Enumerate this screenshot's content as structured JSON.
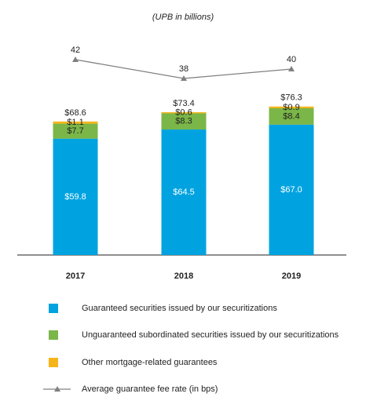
{
  "chart_data": {
    "type": "bar",
    "stacked": true,
    "subtitle": "(UPB in billions)",
    "categories": [
      "2017",
      "2018",
      "2019"
    ],
    "series": [
      {
        "name": "Guaranteed securities issued by our securitizations",
        "color": "#00a3e0",
        "values": [
          59.8,
          64.5,
          67.0
        ],
        "value_labels": [
          "$59.8",
          "$64.5",
          "$67.0"
        ]
      },
      {
        "name": "Unguaranteed subordinated securities issued by our securitizations",
        "color": "#7ab648",
        "values": [
          7.7,
          8.3,
          8.4
        ],
        "value_labels": [
          "$7.7",
          "$8.3",
          "$8.4"
        ]
      },
      {
        "name": "Other mortgage-related guarantees",
        "color": "#f5b519",
        "values": [
          1.1,
          0.6,
          0.9
        ],
        "value_labels": [
          "$1.1",
          "$0.6",
          "$0.9"
        ]
      },
      {
        "name": "Average guarantee fee rate (in bps)",
        "type": "line",
        "color": "#808080",
        "values": [
          42,
          38,
          40
        ]
      }
    ],
    "totals": {
      "values": [
        68.6,
        73.4,
        76.3
      ],
      "value_labels": [
        "$68.6",
        "$73.4",
        "$76.3"
      ]
    }
  }
}
